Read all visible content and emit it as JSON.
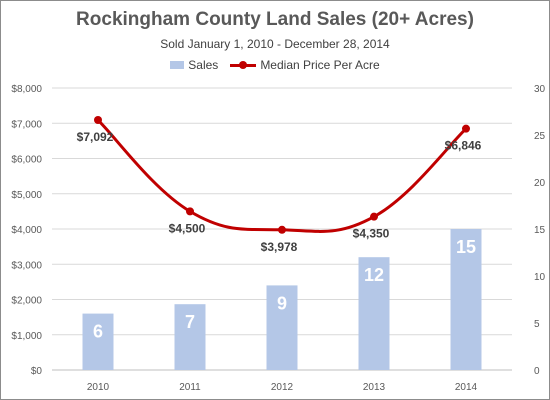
{
  "chart_data": {
    "type": "bar+line",
    "title": "Rockingham County Land Sales (20+ Acres)",
    "subtitle": "Sold January 1, 2010 - December 28, 2014",
    "categories": [
      "2010",
      "2011",
      "2012",
      "2013",
      "2014"
    ],
    "series": [
      {
        "name": "Sales",
        "type": "bar",
        "axis": "right",
        "color": "#b4c7e7",
        "values": [
          6,
          7,
          9,
          12,
          15
        ],
        "labels": [
          "6",
          "7",
          "9",
          "12",
          "15"
        ]
      },
      {
        "name": "Median Price Per Acre",
        "type": "line",
        "axis": "left",
        "color": "#c00000",
        "smooth": true,
        "values": [
          7092,
          4500,
          3978,
          4350,
          6846
        ],
        "labels": [
          "$7,092",
          "$4,500",
          "$3,978",
          "$4,350",
          "$6,846"
        ]
      }
    ],
    "y_left": {
      "min": 0,
      "max": 8000,
      "ticks": [
        "$0",
        "$1,000",
        "$2,000",
        "$3,000",
        "$4,000",
        "$5,000",
        "$6,000",
        "$7,000",
        "$8,000"
      ]
    },
    "y_right": {
      "min": 0,
      "max": 30,
      "ticks": [
        "0",
        "5",
        "10",
        "15",
        "20",
        "25",
        "30"
      ]
    },
    "grid": true,
    "legend_position": "top-center"
  }
}
